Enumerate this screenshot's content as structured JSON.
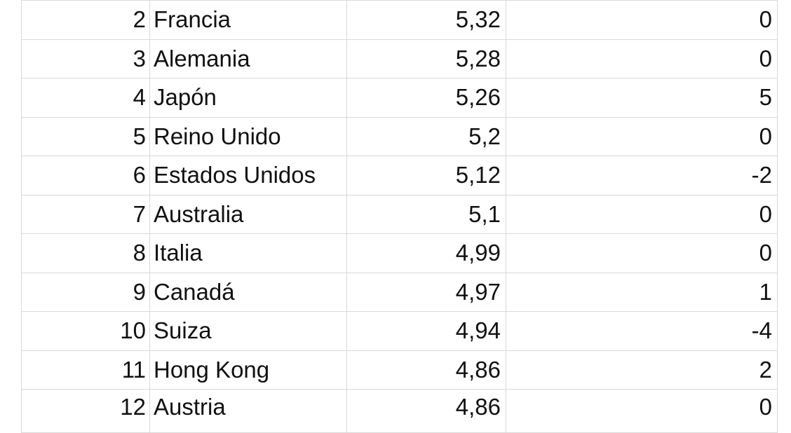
{
  "table": {
    "rows": [
      {
        "rank": "2",
        "country": "Francia",
        "score": "5,32",
        "change": "0"
      },
      {
        "rank": "3",
        "country": "Alemania",
        "score": "5,28",
        "change": "0"
      },
      {
        "rank": "4",
        "country": "Japón",
        "score": "5,26",
        "change": "5"
      },
      {
        "rank": "5",
        "country": "Reino Unido",
        "score": "5,2",
        "change": "0"
      },
      {
        "rank": "6",
        "country": "Estados Unidos",
        "score": "5,12",
        "change": "-2"
      },
      {
        "rank": "7",
        "country": "Australia",
        "score": "5,1",
        "change": "0"
      },
      {
        "rank": "8",
        "country": "Italia",
        "score": "4,99",
        "change": "0"
      },
      {
        "rank": "9",
        "country": "Canadá",
        "score": "4,97",
        "change": "1"
      },
      {
        "rank": "10",
        "country": "Suiza",
        "score": "4,94",
        "change": "-4"
      },
      {
        "rank": "11",
        "country": "Hong Kong",
        "score": "4,86",
        "change": "2"
      },
      {
        "rank": "12",
        "country": "Austria",
        "score": "4,86",
        "change": "0"
      }
    ]
  }
}
